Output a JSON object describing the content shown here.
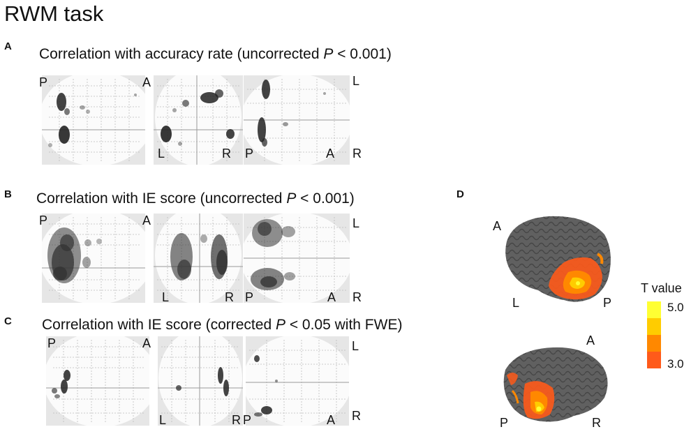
{
  "figure_title": "RWM task",
  "panels": {
    "A": {
      "letter": "A",
      "caption_pre": "Correlation with accuracy rate (uncorrected ",
      "caption_p": "P",
      "caption_post": " < 0.001)",
      "views": {
        "sag": {
          "tl": "P",
          "tr": "A"
        },
        "cor": {
          "bl": "L",
          "br": "R"
        },
        "axi": {
          "bl": "P",
          "br": "A",
          "rt": "L",
          "rb": "R"
        }
      }
    },
    "B": {
      "letter": "B",
      "caption_pre": "Correlation with IE score (uncorrected ",
      "caption_p": "P",
      "caption_post": " < 0.001)",
      "views": {
        "sag": {
          "tl": "P",
          "tr": "A"
        },
        "cor": {
          "bl": "L",
          "br": "R"
        },
        "axi": {
          "bl": "P",
          "br": "A",
          "rt": "L",
          "rb": "R"
        }
      }
    },
    "C": {
      "letter": "C",
      "caption_pre": "Correlation with IE score (corrected ",
      "caption_p": "P",
      "caption_post": " < 0.05 with FWE)",
      "views": {
        "sag": {
          "tl": "P",
          "tr": "A"
        },
        "cor": {
          "bl": "L",
          "br": "R"
        },
        "axi": {
          "bl": "P",
          "br": "A",
          "rt": "L",
          "rb": "R"
        }
      }
    },
    "D": {
      "letter": "D",
      "top_brain": {
        "a": "A",
        "l": "L",
        "p": "P"
      },
      "bottom_brain": {
        "a": "A",
        "p": "P",
        "r": "R"
      },
      "colorbar": {
        "title": "T value",
        "max_label": "5.0",
        "min_label": "3.0",
        "colors": [
          "#ffff33",
          "#ffcc00",
          "#ff8800",
          "#ff5a1a"
        ]
      }
    }
  }
}
